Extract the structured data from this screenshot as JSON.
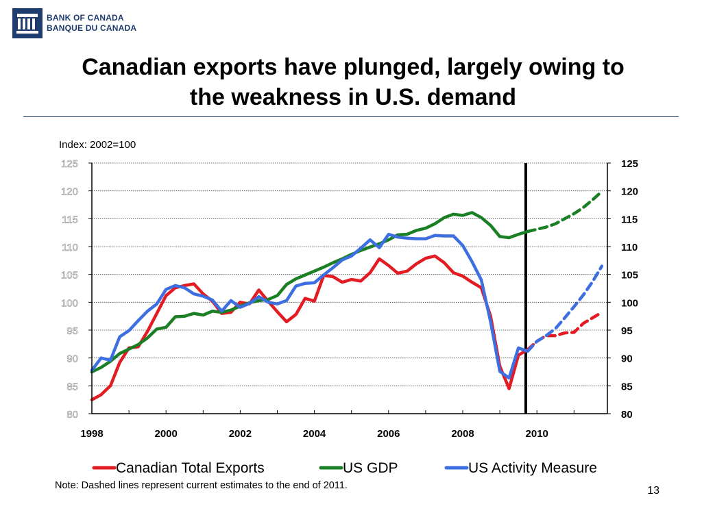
{
  "logo": {
    "line1": "BANK OF CANADA",
    "line2": "BANQUE DU CANADA"
  },
  "slide": {
    "title_line1": "Canadian exports have plunged, largely owing to",
    "title_line2": "the weakness in U.S. demand",
    "number": "13"
  },
  "colors": {
    "exports": "#e31b23",
    "gdp": "#1a7f25",
    "activity": "#3d6fe0",
    "brand": "#1f3c6e"
  },
  "chart_data": {
    "type": "line",
    "index_label": "Index: 2002=100",
    "note": "Note: Dashed lines represent current estimates to the end of 2011.",
    "ylim": [
      80,
      125
    ],
    "xlim": [
      1998,
      2011.9
    ],
    "y_ticks": [
      "80",
      "85",
      "90",
      "95",
      "100",
      "105",
      "110",
      "115",
      "120",
      "125"
    ],
    "x_ticks": [
      "1998",
      "2000",
      "2002",
      "2004",
      "2006",
      "2008",
      "2010"
    ],
    "vertical_marker": 2009.7,
    "grid": true,
    "series": [
      {
        "name": "Canadian Total Exports",
        "color": "#e31b23",
        "actual": {
          "x": [
            1998,
            1998.25,
            1998.5,
            1998.75,
            1999,
            1999.25,
            1999.5,
            1999.75,
            2000,
            2000.25,
            2000.5,
            2000.75,
            2001,
            2001.25,
            2001.5,
            2001.75,
            2002,
            2002.25,
            2002.5,
            2002.75,
            2003,
            2003.25,
            2003.5,
            2003.75,
            2004,
            2004.25,
            2004.5,
            2004.75,
            2005,
            2005.25,
            2005.5,
            2005.75,
            2006,
            2006.25,
            2006.5,
            2006.75,
            2007,
            2007.25,
            2007.5,
            2007.75,
            2008,
            2008.25,
            2008.5,
            2008.75,
            2009,
            2009.25,
            2009.5,
            2009.75
          ],
          "y": [
            82.5,
            83.4,
            85,
            89.2,
            91.8,
            92,
            94.8,
            98,
            101.2,
            102.6,
            103,
            103.3,
            101.5,
            100.2,
            98,
            98.2,
            100,
            99.7,
            102.2,
            100.2,
            98.3,
            96.5,
            97.8,
            100.7,
            100.2,
            104.8,
            104.6,
            103.6,
            104.1,
            103.8,
            105.3,
            107.8,
            106.6,
            105.2,
            105.6,
            106.9,
            107.9,
            108.3,
            107.1,
            105.3,
            104.7,
            103.6,
            102.6,
            97.5,
            88.5,
            84.5,
            90.5,
            91.5
          ],
          "end": 48
        },
        "estimate": {
          "x": [
            2009.75,
            2010,
            2010.25,
            2010.5,
            2010.75,
            2011,
            2011.25,
            2011.5,
            2011.75
          ],
          "y": [
            91.5,
            93,
            94,
            94,
            94.5,
            94.6,
            96.2,
            97.2,
            98.2
          ]
        }
      },
      {
        "name": "US GDP",
        "color": "#1a7f25",
        "actual": {
          "x": [
            1998,
            1998.25,
            1998.5,
            1998.75,
            1999,
            1999.25,
            1999.5,
            1999.75,
            2000,
            2000.25,
            2000.5,
            2000.75,
            2001,
            2001.25,
            2001.5,
            2001.75,
            2002,
            2002.25,
            2002.5,
            2002.75,
            2003,
            2003.25,
            2003.5,
            2003.75,
            2004,
            2004.25,
            2004.5,
            2004.75,
            2005,
            2005.25,
            2005.5,
            2005.75,
            2006,
            2006.25,
            2006.5,
            2006.75,
            2007,
            2007.25,
            2007.5,
            2007.75,
            2008,
            2008.25,
            2008.5,
            2008.75,
            2009,
            2009.25,
            2009.5,
            2009.75
          ],
          "y": [
            87.5,
            88.3,
            89.4,
            90.8,
            91.6,
            92.4,
            93.6,
            95.2,
            95.5,
            97.4,
            97.5,
            98,
            97.7,
            98.4,
            98.2,
            98.6,
            99.3,
            99.9,
            100.3,
            100.5,
            101.2,
            103.2,
            104.2,
            104.9,
            105.6,
            106.3,
            107.1,
            107.8,
            108.6,
            109.3,
            109.9,
            110.5,
            111.2,
            112.1,
            112.2,
            112.9,
            113.3,
            114.1,
            115.2,
            115.8,
            115.6,
            116.1,
            115.2,
            113.8,
            111.8,
            111.6,
            112.2,
            112.7
          ],
          "end": 48
        },
        "estimate": {
          "x": [
            2009.75,
            2010,
            2010.25,
            2010.5,
            2010.75,
            2011,
            2011.25,
            2011.5,
            2011.75
          ],
          "y": [
            112.7,
            113.1,
            113.5,
            114.1,
            115,
            115.9,
            117,
            118.4,
            119.9
          ]
        }
      },
      {
        "name": "US Activity Measure",
        "color": "#3d6fe0",
        "actual": {
          "x": [
            1998,
            1998.25,
            1998.5,
            1998.75,
            1999,
            1999.25,
            1999.5,
            1999.75,
            2000,
            2000.25,
            2000.5,
            2000.75,
            2001,
            2001.25,
            2001.5,
            2001.75,
            2002,
            2002.25,
            2002.5,
            2002.75,
            2003,
            2003.25,
            2003.5,
            2003.75,
            2004,
            2004.25,
            2004.5,
            2004.75,
            2005,
            2005.25,
            2005.5,
            2005.75,
            2006,
            2006.25,
            2006.5,
            2006.75,
            2007,
            2007.25,
            2007.5,
            2007.75,
            2008,
            2008.25,
            2008.5,
            2008.75,
            2009,
            2009.25,
            2009.5,
            2009.75
          ],
          "y": [
            87.8,
            90,
            89.6,
            93.8,
            94.9,
            96.7,
            98.4,
            99.7,
            102.3,
            103,
            102.6,
            101.5,
            101.1,
            100.4,
            98.4,
            100.3,
            99.1,
            99.8,
            101,
            100,
            99.7,
            100.3,
            102.9,
            103.4,
            103.5,
            104.9,
            106.2,
            107.6,
            108.3,
            109.7,
            111.2,
            109.8,
            112.2,
            111.7,
            111.5,
            111.4,
            111.4,
            112,
            111.9,
            111.9,
            110.2,
            107.3,
            104,
            96.5,
            87.6,
            86.4,
            91.8,
            91.2
          ],
          "end": 48
        },
        "estimate": {
          "x": [
            2009.75,
            2010,
            2010.25,
            2010.5,
            2010.75,
            2011,
            2011.25,
            2011.5,
            2011.75
          ],
          "y": [
            91.2,
            93,
            94,
            95.3,
            97.2,
            99.2,
            101.3,
            103.7,
            106.5
          ]
        }
      }
    ]
  }
}
